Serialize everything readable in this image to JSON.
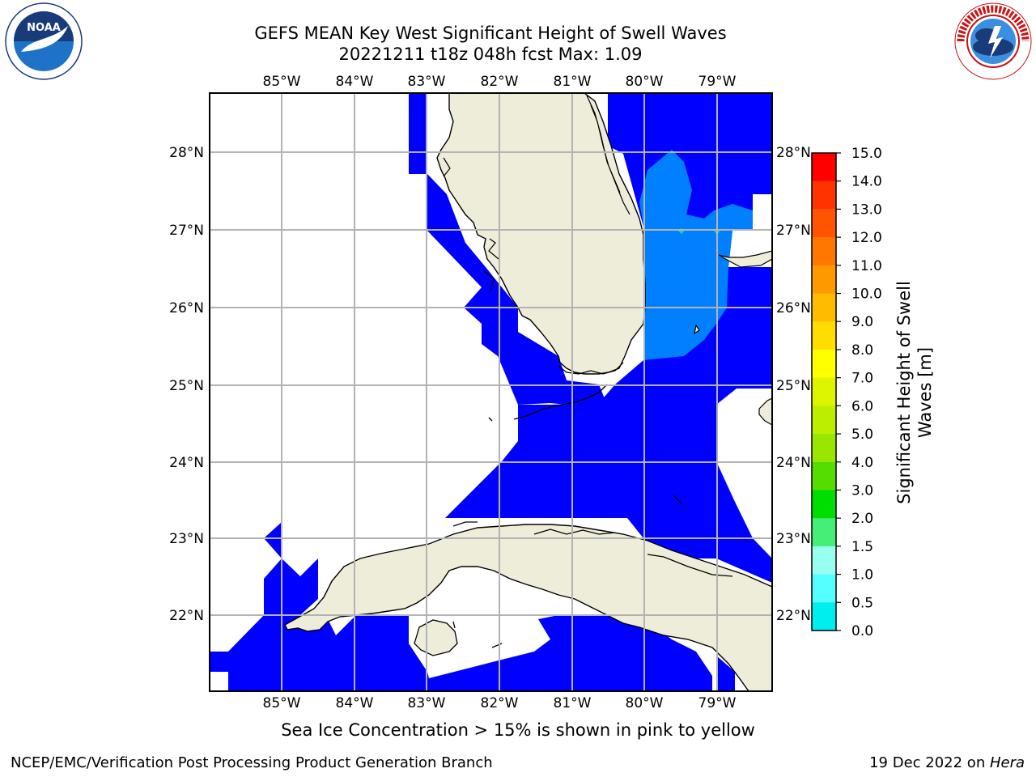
{
  "title_line1": "GEFS MEAN Key West Significant Height of Swell Waves",
  "title_line2": "20221211 t18z 048h fcst   Max: 1.09",
  "logos": {
    "left": {
      "name": "noaa-logo",
      "text": "NOAA",
      "ring_text": "NATIONAL OCEANIC AND ATMOSPHERIC ADMINISTRATION · U.S. DEPARTMENT OF COMMERCE"
    },
    "right": {
      "name": "nws-logo",
      "ring_text": "NATIONAL WEATHER SERVICE"
    }
  },
  "map": {
    "lon_labels": [
      "85°W",
      "84°W",
      "83°W",
      "82°W",
      "81°W",
      "80°W",
      "79°W"
    ],
    "lat_labels": [
      "28°N",
      "27°N",
      "26°N",
      "25°N",
      "24°N",
      "23°N",
      "22°N"
    ],
    "extent": {
      "lon_min": -86.0,
      "lon_max": -78.25,
      "lat_min": 21.05,
      "lat_max": 28.8
    },
    "land_color": "#eeedda",
    "grid": true
  },
  "colorbar": {
    "label_line1": "Significant Height of Swell",
    "label_line2": "Waves [m]",
    "ticks": [
      "15.0",
      "14.0",
      "13.0",
      "12.0",
      "11.0",
      "10.0",
      "9.0",
      "8.0",
      "7.0",
      "6.0",
      "5.0",
      "4.0",
      "3.0",
      "2.0",
      "1.5",
      "1.0",
      "0.5",
      "0.0"
    ],
    "colors": [
      "#ff0000",
      "#ff3300",
      "#ff5500",
      "#ff7700",
      "#ff9900",
      "#ffbb00",
      "#ffdd00",
      "#ffff00",
      "#ddf500",
      "#bbee00",
      "#99e600",
      "#55dd00",
      "#00dd00",
      "#44ee77",
      "#99ffee",
      "#55ffff",
      "#00eeee",
      "#0088ff",
      "#0000ff"
    ]
  },
  "caption": "Sea Ice Concentration > 15% is shown in pink to yellow",
  "footer_left": "NCEP/EMC/Verification Post Processing Product Generation Branch",
  "footer_right_date": "19 Dec 2022 on ",
  "footer_right_host": "Hera"
}
